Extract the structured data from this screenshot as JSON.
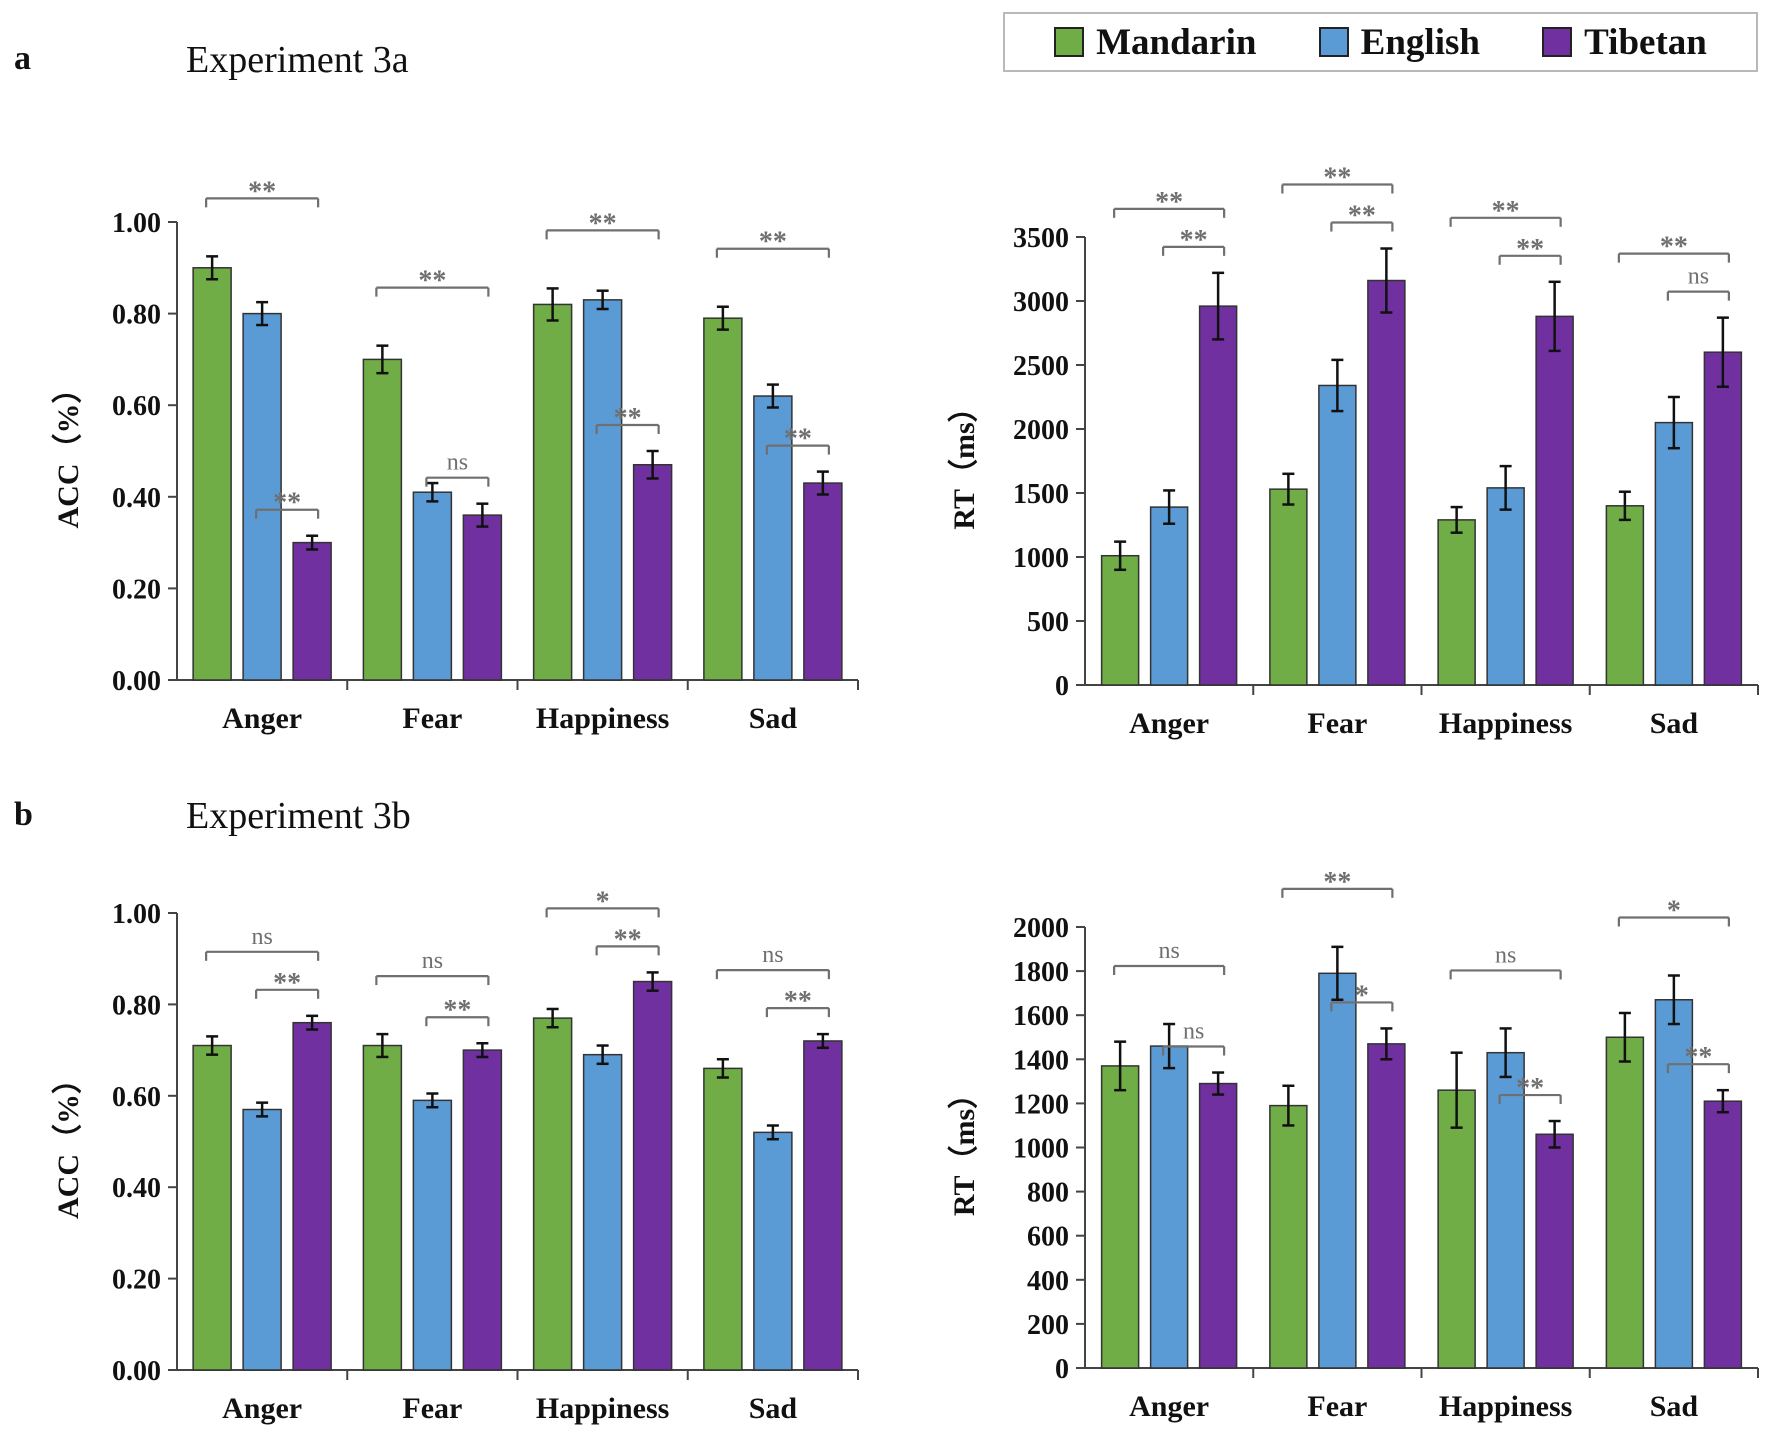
{
  "panels": {
    "a": {
      "letter": "a",
      "title": "Experiment 3a"
    },
    "b": {
      "letter": "b",
      "title": "Experiment 3b"
    }
  },
  "legend": {
    "items": [
      {
        "label": "Mandarin",
        "color": "#70AD47"
      },
      {
        "label": "English",
        "color": "#5B9BD5"
      },
      {
        "label": "Tibetan",
        "color": "#7030A0"
      }
    ]
  },
  "chart_data": [
    {
      "id": "a-acc",
      "type": "bar",
      "categories": [
        "Anger",
        "Fear",
        "Happiness",
        "Sad"
      ],
      "series": [
        {
          "name": "Mandarin",
          "values": [
            0.9,
            0.7,
            0.82,
            0.79
          ],
          "errors": [
            0.025,
            0.03,
            0.035,
            0.025
          ]
        },
        {
          "name": "English",
          "values": [
            0.8,
            0.41,
            0.83,
            0.62
          ],
          "errors": [
            0.025,
            0.02,
            0.02,
            0.025
          ]
        },
        {
          "name": "Tibetan",
          "values": [
            0.3,
            0.36,
            0.47,
            0.43
          ],
          "errors": [
            0.015,
            0.025,
            0.03,
            0.025
          ]
        }
      ],
      "ylabel": "ACC（%）",
      "ylim": [
        0,
        1
      ],
      "yticks": [
        "0.00",
        "0.20",
        "0.40",
        "0.60",
        "0.80",
        "1.00"
      ],
      "ytick_values": [
        0,
        0.2,
        0.4,
        0.6,
        0.8,
        1.0
      ],
      "significance": [
        {
          "category": 0,
          "from": 0,
          "to": 2,
          "label": "**",
          "level": 2
        },
        {
          "category": 0,
          "from": 1,
          "to": 2,
          "label": "**",
          "level": 1
        },
        {
          "category": 1,
          "from": 0,
          "to": 2,
          "label": "**",
          "level": 2
        },
        {
          "category": 1,
          "from": 1,
          "to": 2,
          "label": "ns",
          "level": 1
        },
        {
          "category": 2,
          "from": 0,
          "to": 2,
          "label": "**",
          "level": 2
        },
        {
          "category": 2,
          "from": 1,
          "to": 2,
          "label": "**",
          "level": 1
        },
        {
          "category": 3,
          "from": 0,
          "to": 2,
          "label": "**",
          "level": 2
        },
        {
          "category": 3,
          "from": 1,
          "to": 2,
          "label": "**",
          "level": 1
        }
      ]
    },
    {
      "id": "a-rt",
      "type": "bar",
      "categories": [
        "Anger",
        "Fear",
        "Happiness",
        "Sad"
      ],
      "series": [
        {
          "name": "Mandarin",
          "values": [
            1010,
            1530,
            1290,
            1400
          ],
          "errors": [
            110,
            120,
            100,
            110
          ]
        },
        {
          "name": "English",
          "values": [
            1390,
            2340,
            1540,
            2050
          ],
          "errors": [
            130,
            200,
            170,
            200
          ]
        },
        {
          "name": "Tibetan",
          "values": [
            2960,
            3160,
            2880,
            2600
          ],
          "errors": [
            260,
            250,
            270,
            270
          ]
        }
      ],
      "ylabel": "RT（ms）",
      "ylim": [
        0,
        3500
      ],
      "yticks": [
        "0",
        "500",
        "1000",
        "1500",
        "2000",
        "2500",
        "3000",
        "3500"
      ],
      "ytick_values": [
        0,
        500,
        1000,
        1500,
        2000,
        2500,
        3000,
        3500
      ],
      "significance": [
        {
          "category": 0,
          "from": 0,
          "to": 2,
          "label": "**",
          "level": 2
        },
        {
          "category": 0,
          "from": 1,
          "to": 2,
          "label": "**",
          "level": 1
        },
        {
          "category": 1,
          "from": 0,
          "to": 2,
          "label": "**",
          "level": 2
        },
        {
          "category": 1,
          "from": 1,
          "to": 2,
          "label": "**",
          "level": 1
        },
        {
          "category": 2,
          "from": 0,
          "to": 2,
          "label": "**",
          "level": 2
        },
        {
          "category": 2,
          "from": 1,
          "to": 2,
          "label": "**",
          "level": 1
        },
        {
          "category": 3,
          "from": 0,
          "to": 2,
          "label": "**",
          "level": 2
        },
        {
          "category": 3,
          "from": 1,
          "to": 2,
          "label": "ns",
          "level": 1
        }
      ]
    },
    {
      "id": "b-acc",
      "type": "bar",
      "categories": [
        "Anger",
        "Fear",
        "Happiness",
        "Sad"
      ],
      "series": [
        {
          "name": "Mandarin",
          "values": [
            0.71,
            0.71,
            0.77,
            0.66
          ],
          "errors": [
            0.02,
            0.025,
            0.02,
            0.02
          ]
        },
        {
          "name": "English",
          "values": [
            0.57,
            0.59,
            0.69,
            0.52
          ],
          "errors": [
            0.015,
            0.015,
            0.02,
            0.015
          ]
        },
        {
          "name": "Tibetan",
          "values": [
            0.76,
            0.7,
            0.85,
            0.72
          ],
          "errors": [
            0.015,
            0.015,
            0.02,
            0.015
          ]
        }
      ],
      "ylabel": "ACC（%）",
      "ylim": [
        0,
        1
      ],
      "yticks": [
        "0.00",
        "0.20",
        "0.40",
        "0.60",
        "0.80",
        "1.00"
      ],
      "ytick_values": [
        0,
        0.2,
        0.4,
        0.6,
        0.8,
        1.0
      ],
      "significance": [
        {
          "category": 0,
          "from": 0,
          "to": 2,
          "label": "ns",
          "level": 2
        },
        {
          "category": 0,
          "from": 1,
          "to": 2,
          "label": "**",
          "level": 1
        },
        {
          "category": 1,
          "from": 0,
          "to": 2,
          "label": "ns",
          "level": 2
        },
        {
          "category": 1,
          "from": 1,
          "to": 2,
          "label": "**",
          "level": 1
        },
        {
          "category": 2,
          "from": 0,
          "to": 2,
          "label": "*",
          "level": 2
        },
        {
          "category": 2,
          "from": 1,
          "to": 2,
          "label": "**",
          "level": 1
        },
        {
          "category": 3,
          "from": 0,
          "to": 2,
          "label": "ns",
          "level": 2
        },
        {
          "category": 3,
          "from": 1,
          "to": 2,
          "label": "**",
          "level": 1
        }
      ]
    },
    {
      "id": "b-rt",
      "type": "bar",
      "categories": [
        "Anger",
        "Fear",
        "Happiness",
        "Sad"
      ],
      "series": [
        {
          "name": "Mandarin",
          "values": [
            1370,
            1190,
            1260,
            1500
          ],
          "errors": [
            110,
            90,
            170,
            110
          ]
        },
        {
          "name": "English",
          "values": [
            1460,
            1790,
            1430,
            1670
          ],
          "errors": [
            100,
            120,
            110,
            110
          ]
        },
        {
          "name": "Tibetan",
          "values": [
            1290,
            1470,
            1060,
            1210
          ],
          "errors": [
            50,
            70,
            60,
            50
          ]
        }
      ],
      "ylabel": "RT（ms）",
      "ylim": [
        0,
        2000
      ],
      "yticks": [
        "0",
        "200",
        "400",
        "600",
        "800",
        "1000",
        "1200",
        "1400",
        "1600",
        "1800",
        "2000"
      ],
      "ytick_values": [
        0,
        200,
        400,
        600,
        800,
        1000,
        1200,
        1400,
        1600,
        1800,
        2000
      ],
      "significance": [
        {
          "category": 0,
          "from": 0,
          "to": 2,
          "label": "ns",
          "level": 2
        },
        {
          "category": 0,
          "from": 1,
          "to": 2,
          "label": "ns",
          "level": 1
        },
        {
          "category": 1,
          "from": 0,
          "to": 2,
          "label": "**",
          "level": 2
        },
        {
          "category": 1,
          "from": 1,
          "to": 2,
          "label": "*",
          "level": 1
        },
        {
          "category": 2,
          "from": 0,
          "to": 2,
          "label": "ns",
          "level": 2
        },
        {
          "category": 2,
          "from": 1,
          "to": 2,
          "label": "**",
          "level": 1
        },
        {
          "category": 3,
          "from": 0,
          "to": 2,
          "label": "*",
          "level": 2
        },
        {
          "category": 3,
          "from": 1,
          "to": 2,
          "label": "**",
          "level": 1
        }
      ]
    }
  ]
}
